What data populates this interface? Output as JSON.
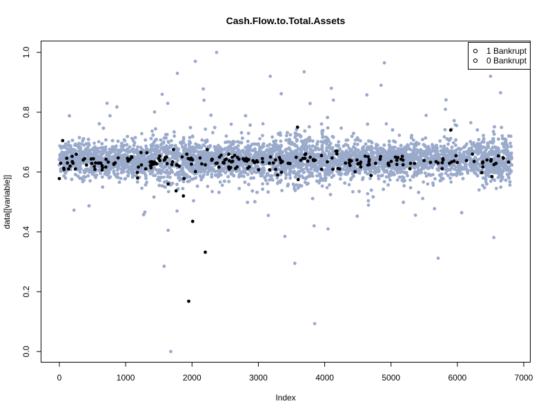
{
  "chart_data": {
    "type": "scatter",
    "title": "Cash.Flow.to.Total.Assets",
    "xlabel": "Index",
    "ylabel": "data[[variable]]",
    "xlim": [
      0,
      7000
    ],
    "ylim": [
      0,
      1
    ],
    "x_ticks": [
      "0",
      "1000",
      "2000",
      "3000",
      "4000",
      "5000",
      "6000",
      "7000"
    ],
    "y_ticks": [
      "0.0",
      "0.2",
      "0.4",
      "0.6",
      "0.8",
      "1.0"
    ],
    "legend_position": "top-right",
    "legend": [
      {
        "label": "1 Bankrupt",
        "marker": "o"
      },
      {
        "label": "0 Bankrupt",
        "marker": "o"
      }
    ],
    "series": [
      {
        "key": "not-bankrupt",
        "color": "#9aaacb",
        "n_points": 6600,
        "typical_band": [
          0.58,
          0.69
        ],
        "outliers": [
          {
            "x": 1680,
            "y": 0.0
          },
          {
            "x": 1580,
            "y": 0.285
          },
          {
            "x": 3850,
            "y": 0.093
          },
          {
            "x": 3550,
            "y": 0.295
          },
          {
            "x": 5710,
            "y": 0.312
          },
          {
            "x": 6550,
            "y": 0.381
          },
          {
            "x": 3400,
            "y": 0.385
          },
          {
            "x": 1640,
            "y": 0.405
          },
          {
            "x": 3840,
            "y": 0.42
          },
          {
            "x": 4050,
            "y": 0.41
          },
          {
            "x": 3150,
            "y": 0.455
          },
          {
            "x": 2370,
            "y": 1.0
          },
          {
            "x": 2050,
            "y": 0.97
          },
          {
            "x": 1780,
            "y": 0.93
          },
          {
            "x": 3690,
            "y": 0.935
          },
          {
            "x": 4900,
            "y": 0.965
          },
          {
            "x": 6500,
            "y": 0.92
          },
          {
            "x": 3180,
            "y": 0.92
          },
          {
            "x": 4850,
            "y": 0.89
          },
          {
            "x": 4100,
            "y": 0.88
          },
          {
            "x": 2180,
            "y": 0.84
          },
          {
            "x": 1550,
            "y": 0.86
          },
          {
            "x": 720,
            "y": 0.83
          },
          {
            "x": 6650,
            "y": 0.865
          }
        ]
      },
      {
        "key": "bankrupt",
        "color": "#000000",
        "n_points": 220,
        "typical_band": [
          0.6,
          0.67
        ],
        "outliers": [
          {
            "x": 1950,
            "y": 0.168
          },
          {
            "x": 2200,
            "y": 0.332
          },
          {
            "x": 2010,
            "y": 0.435
          },
          {
            "x": 1870,
            "y": 0.52
          },
          {
            "x": 1760,
            "y": 0.537
          },
          {
            "x": 1640,
            "y": 0.56
          },
          {
            "x": 0,
            "y": 0.578
          },
          {
            "x": 1180,
            "y": 0.58
          },
          {
            "x": 1880,
            "y": 0.578
          },
          {
            "x": 3600,
            "y": 0.575
          },
          {
            "x": 6520,
            "y": 0.585
          },
          {
            "x": 3290,
            "y": 0.59
          },
          {
            "x": 50,
            "y": 0.705
          },
          {
            "x": 3590,
            "y": 0.75
          },
          {
            "x": 5900,
            "y": 0.74
          },
          {
            "x": 2230,
            "y": 0.675
          },
          {
            "x": 1720,
            "y": 0.675
          },
          {
            "x": 1230,
            "y": 0.665
          }
        ]
      }
    ]
  }
}
